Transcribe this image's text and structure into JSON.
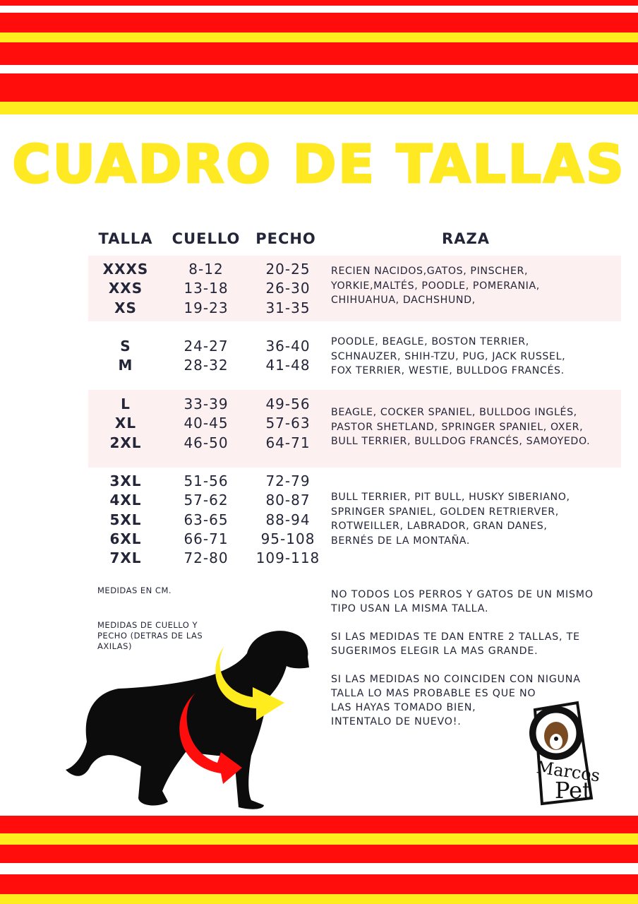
{
  "title": "CUADRO DE TALLAS",
  "headers": {
    "talla": "TALLA",
    "cuello": "CUELLO",
    "pecho": "PECHO",
    "raza": "RAZA"
  },
  "groups": [
    {
      "tallas": [
        "XXXS",
        "XXS",
        "XS"
      ],
      "cuello": [
        "8-12",
        "13-18",
        "19-23"
      ],
      "pecho": [
        "20-25",
        "26-30",
        "31-35"
      ],
      "raza": [
        "RECIEN NACIDOS,GATOS, PINSCHER,",
        "YORKIE,MALTÉS, POODLE, POMERANIA,",
        "CHIHUAHUA, DACHSHUND,"
      ]
    },
    {
      "tallas": [
        "S",
        "M"
      ],
      "cuello": [
        "24-27",
        "28-32"
      ],
      "pecho": [
        "36-40",
        "41-48"
      ],
      "raza": [
        "POODLE, BEAGLE, BOSTON TERRIER,",
        "SCHNAUZER, SHIH-TZU, PUG, JACK RUSSEL,",
        "FOX TERRIER, WESTIE, BULLDOG FRANCÉS."
      ]
    },
    {
      "tallas": [
        "L",
        "XL",
        "2XL"
      ],
      "cuello": [
        "33-39",
        "40-45",
        "46-50"
      ],
      "pecho": [
        "49-56",
        "57-63",
        "64-71"
      ],
      "raza": [
        "BEAGLE, COCKER SPANIEL, BULLDOG INGLÉS,",
        "PASTOR SHETLAND, SPRINGER SPANIEL, OXER,",
        "BULL TERRIER, BULLDOG FRANCÉS, SAMOYEDO."
      ]
    },
    {
      "tallas": [
        "3XL",
        "4XL",
        "5XL",
        "6XL",
        "7XL"
      ],
      "cuello": [
        "51-56",
        "57-62",
        "63-65",
        "66-71",
        "72-80"
      ],
      "pecho": [
        "72-79",
        "80-87",
        "88-94",
        "95-108",
        "109-118"
      ],
      "raza": [
        "BULL TERRIER, PIT BULL, HUSKY SIBERIANO,",
        "SPRINGER SPANIEL, GOLDEN RETRIERVER,",
        "ROTWEILLER, LABRADOR, GRAN DANES,",
        "BERNÉS DE LA MONTAÑA."
      ]
    }
  ],
  "left_notes": {
    "units": "MEDIDAS EN CM.",
    "measure": [
      "MEDIDAS DE CUELLO Y",
      "PECHO (DETRAS DE LAS",
      "AXILAS)"
    ]
  },
  "notes": [
    [
      "NO TODOS LOS PERROS Y GATOS DE UN MISMO",
      "TIPO USAN LA MISMA TALLA."
    ],
    [
      "SI LAS MEDIDAS TE DAN ENTRE 2 TALLAS, TE",
      "SUGERIMOS ELEGIR LA MAS GRANDE."
    ],
    [
      "SI LAS MEDIDAS NO COINCIDEN CON NIGUNA",
      "TALLA LO MAS PROBABLE ES QUE NO",
      "LAS HAYAS TOMADO BIEN,",
      "INTENTALO DE NUEVO!."
    ]
  ],
  "logo": {
    "text": "MarcoS Pet"
  },
  "colors": {
    "red": "#ff0d0d",
    "yellow": "#ffec1f",
    "band": "#fdf0f0",
    "text": "#232538"
  }
}
